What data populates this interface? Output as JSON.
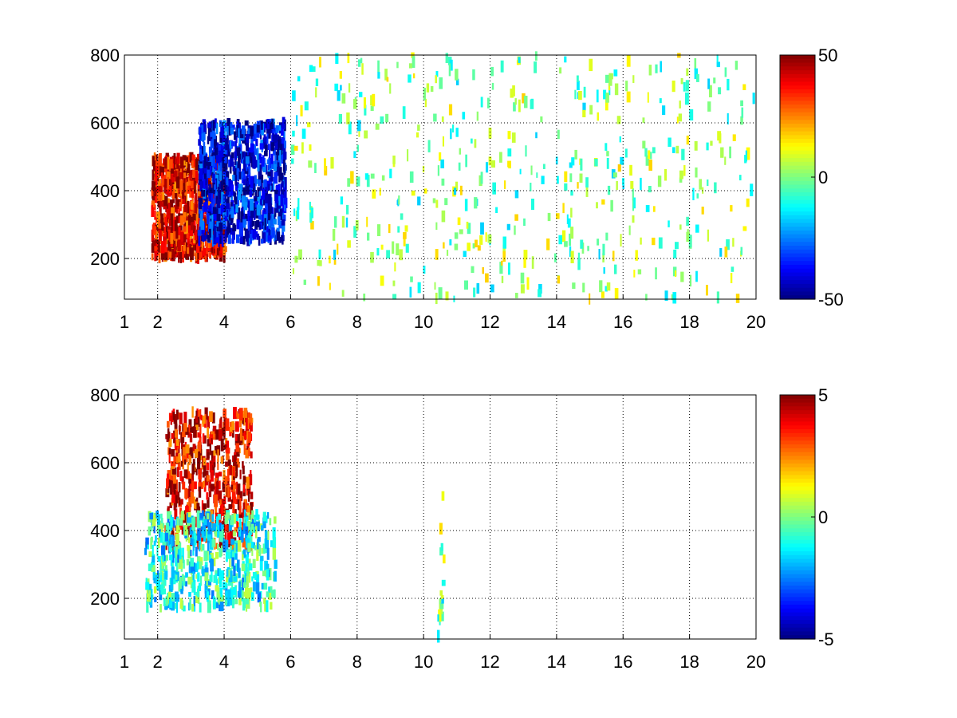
{
  "chart_data": [
    {
      "type": "heatmap",
      "title": "",
      "xlabel": "",
      "ylabel": "",
      "xlim": [
        1,
        20
      ],
      "ylim": [
        80,
        800
      ],
      "x_ticks": [
        "1",
        "2",
        "4",
        "6",
        "8",
        "10",
        "12",
        "14",
        "16",
        "18",
        "20"
      ],
      "y_ticks": [
        "200",
        "400",
        "600",
        "800"
      ],
      "grid": true,
      "colormap": "jet",
      "colorbar": {
        "min": -50,
        "max": 50,
        "ticks": [
          "50",
          "0",
          "-50"
        ]
      },
      "regions": [
        {
          "label": "positive cluster",
          "x": [
            1.8,
            4.0
          ],
          "y": [
            200,
            500
          ],
          "value": 40
        },
        {
          "label": "negative cluster",
          "x": [
            3.2,
            5.8
          ],
          "y": [
            250,
            600
          ],
          "value": -40
        },
        {
          "label": "sparse scatter",
          "x": [
            6,
            20
          ],
          "y": [
            80,
            800
          ],
          "value": 0
        }
      ]
    },
    {
      "type": "heatmap",
      "title": "",
      "xlabel": "",
      "ylabel": "",
      "xlim": [
        1,
        20
      ],
      "ylim": [
        80,
        800
      ],
      "x_ticks": [
        "1",
        "2",
        "4",
        "6",
        "8",
        "10",
        "12",
        "14",
        "16",
        "18",
        "20"
      ],
      "y_ticks": [
        "200",
        "400",
        "600",
        "800"
      ],
      "grid": true,
      "colormap": "jet",
      "colorbar": {
        "min": -5,
        "max": 5,
        "ticks": [
          "5",
          "0",
          "-5"
        ]
      },
      "regions": [
        {
          "label": "positive cluster",
          "x": [
            2.2,
            4.8
          ],
          "y": [
            350,
            750
          ],
          "value": 4
        },
        {
          "label": "near-zero cluster",
          "x": [
            1.6,
            5.5
          ],
          "y": [
            170,
            450
          ],
          "value": -1
        },
        {
          "label": "isolated column",
          "x": [
            10.4,
            10.6
          ],
          "y": [
            80,
            550
          ],
          "value": 0
        }
      ]
    }
  ]
}
